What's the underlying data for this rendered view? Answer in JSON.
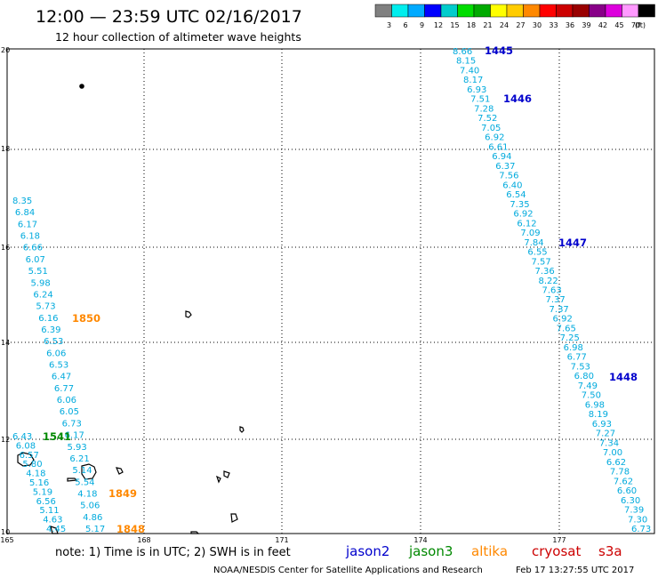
{
  "header": {
    "title": "12:00 — 23:59 UTC 02/16/2017",
    "subtitle": "12 hour collection of altimeter wave heights"
  },
  "colorbar": {
    "colors": [
      "#808080",
      "#00eeee",
      "#00aaff",
      "#0000ff",
      "#00cccc",
      "#00dd00",
      "#00aa00",
      "#ffff00",
      "#ffcc00",
      "#ff8800",
      "#ff0000",
      "#cc0000",
      "#990000",
      "#880088",
      "#dd00dd",
      "#ff99ff",
      "#000000"
    ],
    "labels": [
      "3",
      "6",
      "9",
      "12",
      "15",
      "18",
      "21",
      "24",
      "27",
      "30",
      "33",
      "36",
      "39",
      "42",
      "45",
      "70",
      "(ft)"
    ]
  },
  "axes": {
    "lat_labels": [
      "20",
      "18",
      "16",
      "14",
      "12",
      "10"
    ],
    "lon_labels": [
      "165",
      "168",
      "171",
      "174",
      "177"
    ]
  },
  "tracks": {
    "east": {
      "values": [
        "8.66",
        "8.15",
        "7.40",
        "8.17",
        "6.93",
        "7.51",
        "7.28",
        "7.52",
        "7.05",
        "6.92",
        "6.61",
        "6.94",
        "6.37",
        "7.56",
        "6.40",
        "6.54",
        "7.35",
        "6.92",
        "6.12",
        "7.09",
        "7.84",
        "6.55",
        "7.57",
        "7.36",
        "8.22",
        "7.63",
        "7.37",
        "7.37",
        "6.92",
        "7.65",
        "7.25",
        "6.98",
        "6.77",
        "7.53",
        "6.80",
        "7.49",
        "7.50",
        "6.98",
        "8.19",
        "6.93",
        "7.27",
        "7.34",
        "7.00",
        "6.62",
        "7.78",
        "7.62",
        "6.60",
        "6.30",
        "7.39",
        "7.30",
        "6.73"
      ],
      "times": [
        "1445",
        "1446",
        "1447",
        "1448"
      ],
      "time_color": "#0000cc"
    },
    "west": {
      "values": [
        "8.35",
        "6.84",
        "6.17",
        "6.18",
        "6.66",
        "6.07",
        "5.51",
        "5.98",
        "6.24",
        "5.73",
        "6.16",
        "6.39",
        "6.53",
        "6.06",
        "6.53",
        "6.47",
        "6.77",
        "6.06",
        "6.05",
        "6.73",
        "6.17",
        "5.93",
        "6.21",
        "5.14",
        "5.54",
        "4.18",
        "5.06",
        "4.86",
        "5.17"
      ],
      "times_orange": [
        "1850",
        "1849",
        "1848"
      ],
      "time_orange_color": "#ff8800"
    },
    "far_west": {
      "values": [
        "6.43",
        "6.08",
        "6.57",
        "5.80",
        "4.18",
        "5.16",
        "5.19",
        "6.56",
        "5.11",
        "4.63",
        "4.45"
      ],
      "time_green": "1541",
      "time_green_color": "#008800"
    }
  },
  "footer": {
    "note": "note: 1) Time is in UTC; 2) SWH is in feet",
    "satellites": [
      {
        "name": "jason2",
        "color": "#0000cc"
      },
      {
        "name": "jason3",
        "color": "#008800"
      },
      {
        "name": "altika",
        "color": "#ff8800"
      },
      {
        "name": "cryosat",
        "color": "#cc0000"
      },
      {
        "name": "s3a",
        "color": "#cc0000"
      }
    ],
    "credit": "NOAA/NESDIS Center for Satellite Applications and Research",
    "timestamp": "Feb 17 13:27:55 UTC 2017"
  }
}
